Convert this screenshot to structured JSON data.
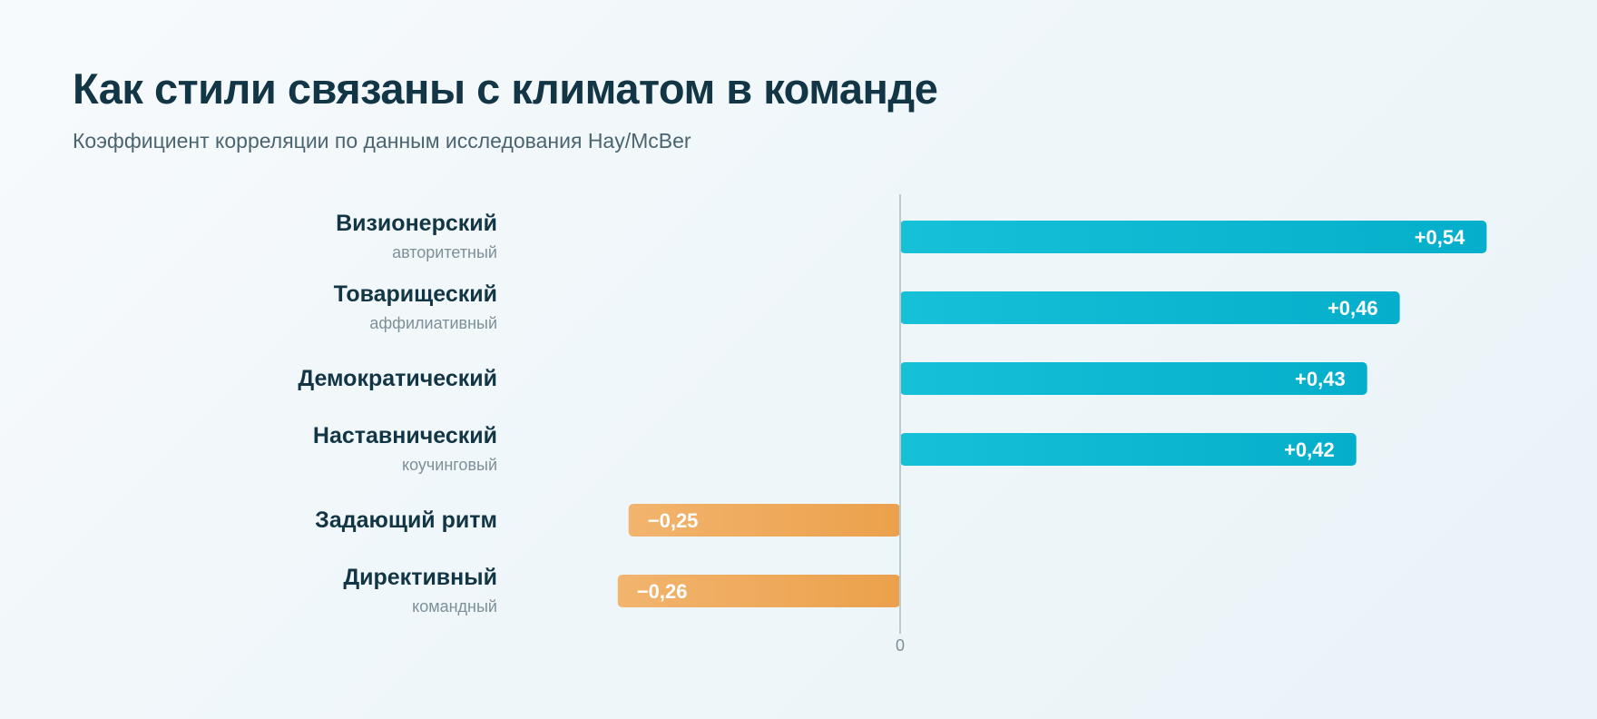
{
  "title": "Как стили связаны с климатом в команде",
  "subtitle": "Коэффициент корреляции по данным исследования Hay/McBer",
  "colors": {
    "positive": "#0fb6d2",
    "negative": "#efa95a",
    "text": "#123645",
    "muted": "#7d9097",
    "axis": "#b9cdd1"
  },
  "chart_data": {
    "type": "bar",
    "orientation": "horizontal",
    "categories": [
      "Визионерский",
      "Товарищеский",
      "Демократический",
      "Наставнический",
      "Задающий ритм",
      "Директивный"
    ],
    "category_sublabels": [
      "авторитетный",
      "аффилиативный",
      "",
      "коучинговый",
      "",
      "командный"
    ],
    "values": [
      0.54,
      0.46,
      0.43,
      0.42,
      -0.25,
      -0.26
    ],
    "value_labels": [
      "+0,54",
      "+0,46",
      "+0,43",
      "+0,42",
      "−0,25",
      "−0,26"
    ],
    "zero_label": "0",
    "xlim": [
      -0.26,
      0.54
    ],
    "grid": false
  }
}
